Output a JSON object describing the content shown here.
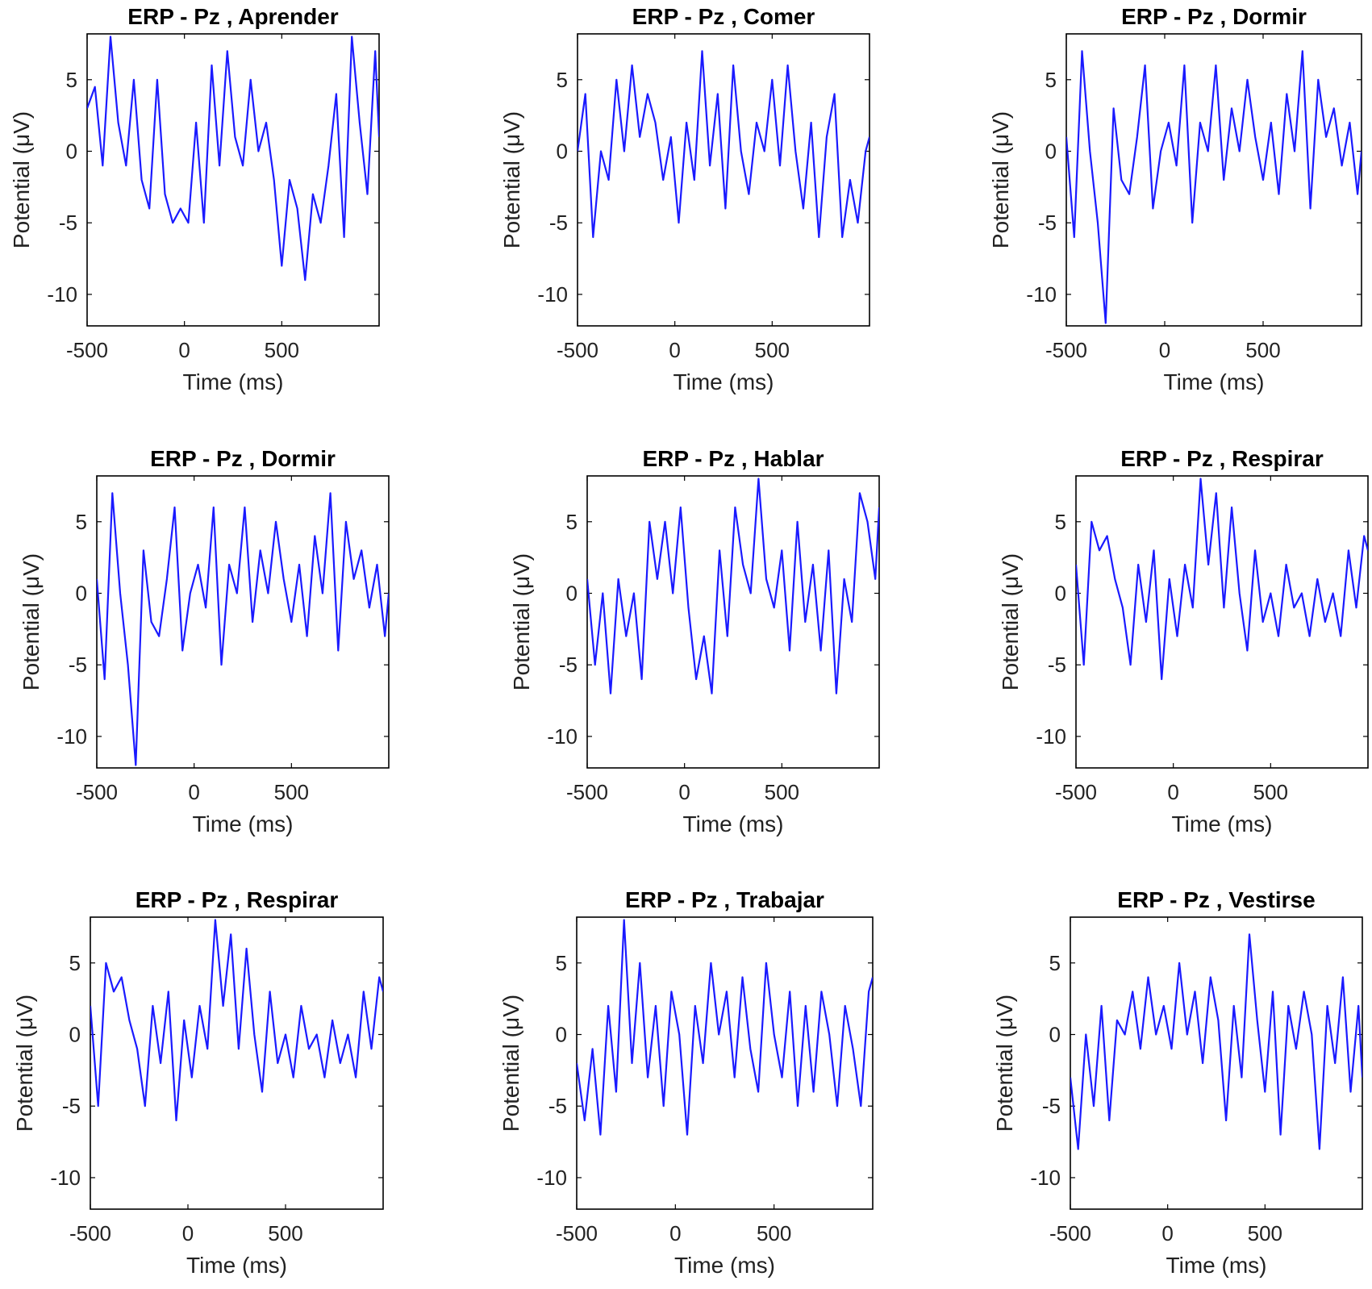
{
  "figure": {
    "line_color": "#1a1aff",
    "axis_color": "#000000",
    "background": "#ffffff"
  },
  "chart_data": [
    {
      "type": "line",
      "title": "ERP - Pz , Aprender",
      "xlabel": "Time (ms)",
      "ylabel": "Potential (μV)",
      "xlim": [
        -500,
        1000
      ],
      "ylim": [
        -12.2,
        8.2
      ],
      "xticks": [
        "-500",
        "0",
        "500"
      ],
      "yticks": [
        "5",
        "0",
        "-5",
        "-10"
      ],
      "series": [
        {
          "name": "Pz",
          "x": [
            -500,
            -460,
            -420,
            -380,
            -340,
            -300,
            -260,
            -220,
            -180,
            -140,
            -100,
            -60,
            -20,
            20,
            60,
            100,
            140,
            180,
            220,
            260,
            300,
            340,
            380,
            420,
            460,
            500,
            540,
            580,
            620,
            660,
            700,
            740,
            780,
            820,
            860,
            900,
            940,
            980,
            1000
          ],
          "y": [
            3,
            4.5,
            -1,
            8,
            2,
            -1,
            5,
            -2,
            -4,
            5,
            -3,
            -5,
            -4,
            -5,
            2,
            -5,
            6,
            -1,
            7,
            1,
            -1,
            5,
            0,
            2,
            -2,
            -8,
            -2,
            -4,
            -9,
            -3,
            -5,
            -1,
            4,
            -6,
            8,
            2,
            -3,
            7,
            1
          ]
        }
      ]
    },
    {
      "type": "line",
      "title": "ERP - Pz , Comer",
      "xlabel": "Time (ms)",
      "ylabel": "Potential (μV)",
      "xlim": [
        -500,
        1000
      ],
      "ylim": [
        -12.2,
        8.2
      ],
      "xticks": [
        "-500",
        "0",
        "500"
      ],
      "yticks": [
        "5",
        "0",
        "-5",
        "-10"
      ],
      "series": [
        {
          "name": "Pz",
          "x": [
            -500,
            -460,
            -420,
            -380,
            -340,
            -300,
            -260,
            -220,
            -180,
            -140,
            -100,
            -60,
            -20,
            20,
            60,
            100,
            140,
            180,
            220,
            260,
            300,
            340,
            380,
            420,
            460,
            500,
            540,
            580,
            620,
            660,
            700,
            740,
            780,
            820,
            860,
            900,
            940,
            980,
            1000
          ],
          "y": [
            0,
            4,
            -6,
            0,
            -2,
            5,
            0,
            6,
            1,
            4,
            2,
            -2,
            1,
            -5,
            2,
            -2,
            7,
            -1,
            4,
            -4,
            6,
            0,
            -3,
            2,
            0,
            5,
            -1,
            6,
            0,
            -4,
            2,
            -6,
            1,
            4,
            -6,
            -2,
            -5,
            0,
            1
          ]
        }
      ]
    },
    {
      "type": "line",
      "title": "ERP - Pz , Dormir",
      "xlabel": "Time (ms)",
      "ylabel": "Potential (μV)",
      "xlim": [
        -500,
        1000
      ],
      "ylim": [
        -12.2,
        8.2
      ],
      "xticks": [
        "-500",
        "0",
        "500"
      ],
      "yticks": [
        "5",
        "0",
        "-5",
        "-10"
      ],
      "series": [
        {
          "name": "Pz",
          "x": [
            -500,
            -460,
            -420,
            -380,
            -340,
            -300,
            -260,
            -220,
            -180,
            -140,
            -100,
            -60,
            -20,
            20,
            60,
            100,
            140,
            180,
            220,
            260,
            300,
            340,
            380,
            420,
            460,
            500,
            540,
            580,
            620,
            660,
            700,
            740,
            780,
            820,
            860,
            900,
            940,
            980,
            1000
          ],
          "y": [
            1,
            -6,
            7,
            0,
            -5,
            -12,
            3,
            -2,
            -3,
            1,
            6,
            -4,
            0,
            2,
            -1,
            6,
            -5,
            2,
            0,
            6,
            -2,
            3,
            0,
            5,
            1,
            -2,
            2,
            -3,
            4,
            0,
            7,
            -4,
            5,
            1,
            3,
            -1,
            2,
            -3,
            0
          ]
        }
      ]
    },
    {
      "type": "line",
      "title": "ERP - Pz , Dormir",
      "xlabel": "Time (ms)",
      "ylabel": "Potential (μV)",
      "xlim": [
        -500,
        1000
      ],
      "ylim": [
        -12.2,
        8.2
      ],
      "xticks": [
        "-500",
        "0",
        "500"
      ],
      "yticks": [
        "5",
        "0",
        "-5",
        "-10"
      ],
      "series": [
        {
          "name": "Pz",
          "x": [
            -500,
            -460,
            -420,
            -380,
            -340,
            -300,
            -260,
            -220,
            -180,
            -140,
            -100,
            -60,
            -20,
            20,
            60,
            100,
            140,
            180,
            220,
            260,
            300,
            340,
            380,
            420,
            460,
            500,
            540,
            580,
            620,
            660,
            700,
            740,
            780,
            820,
            860,
            900,
            940,
            980,
            1000
          ],
          "y": [
            1,
            -6,
            7,
            0,
            -5,
            -12,
            3,
            -2,
            -3,
            1,
            6,
            -4,
            0,
            2,
            -1,
            6,
            -5,
            2,
            0,
            6,
            -2,
            3,
            0,
            5,
            1,
            -2,
            2,
            -3,
            4,
            0,
            7,
            -4,
            5,
            1,
            3,
            -1,
            2,
            -3,
            0
          ]
        }
      ]
    },
    {
      "type": "line",
      "title": "ERP - Pz , Hablar",
      "xlabel": "Time (ms)",
      "ylabel": "Potential (μV)",
      "xlim": [
        -500,
        1000
      ],
      "ylim": [
        -12.2,
        8.2
      ],
      "xticks": [
        "-500",
        "0",
        "500"
      ],
      "yticks": [
        "5",
        "0",
        "-5",
        "-10"
      ],
      "series": [
        {
          "name": "Pz",
          "x": [
            -500,
            -460,
            -420,
            -380,
            -340,
            -300,
            -260,
            -220,
            -180,
            -140,
            -100,
            -60,
            -20,
            20,
            60,
            100,
            140,
            180,
            220,
            260,
            300,
            340,
            380,
            420,
            460,
            500,
            540,
            580,
            620,
            660,
            700,
            740,
            780,
            820,
            860,
            900,
            940,
            980,
            1000
          ],
          "y": [
            1,
            -5,
            0,
            -7,
            1,
            -3,
            0,
            -6,
            5,
            1,
            5,
            0,
            6,
            -1,
            -6,
            -3,
            -7,
            3,
            -3,
            6,
            2,
            0,
            8,
            1,
            -1,
            3,
            -4,
            5,
            -2,
            2,
            -4,
            3,
            -7,
            1,
            -2,
            7,
            5,
            1,
            6
          ]
        }
      ]
    },
    {
      "type": "line",
      "title": "ERP - Pz , Respirar",
      "xlabel": "Time (ms)",
      "ylabel": "Potential (μV)",
      "xlim": [
        -500,
        1000
      ],
      "ylim": [
        -12.2,
        8.2
      ],
      "xticks": [
        "-500",
        "0",
        "500"
      ],
      "yticks": [
        "5",
        "0",
        "-5",
        "-10"
      ],
      "series": [
        {
          "name": "Pz",
          "x": [
            -500,
            -460,
            -420,
            -380,
            -340,
            -300,
            -260,
            -220,
            -180,
            -140,
            -100,
            -60,
            -20,
            20,
            60,
            100,
            140,
            180,
            220,
            260,
            300,
            340,
            380,
            420,
            460,
            500,
            540,
            580,
            620,
            660,
            700,
            740,
            780,
            820,
            860,
            900,
            940,
            980,
            1000
          ],
          "y": [
            2,
            -5,
            5,
            3,
            4,
            1,
            -1,
            -5,
            2,
            -2,
            3,
            -6,
            1,
            -3,
            2,
            -1,
            8,
            2,
            7,
            -1,
            6,
            0,
            -4,
            3,
            -2,
            0,
            -3,
            2,
            -1,
            0,
            -3,
            1,
            -2,
            0,
            -3,
            3,
            -1,
            4,
            3
          ]
        }
      ]
    },
    {
      "type": "line",
      "title": "ERP - Pz , Respirar",
      "xlabel": "Time (ms)",
      "ylabel": "Potential (μV)",
      "xlim": [
        -500,
        1000
      ],
      "ylim": [
        -12.2,
        8.2
      ],
      "xticks": [
        "-500",
        "0",
        "500"
      ],
      "yticks": [
        "5",
        "0",
        "-5",
        "-10"
      ],
      "series": [
        {
          "name": "Pz",
          "x": [
            -500,
            -460,
            -420,
            -380,
            -340,
            -300,
            -260,
            -220,
            -180,
            -140,
            -100,
            -60,
            -20,
            20,
            60,
            100,
            140,
            180,
            220,
            260,
            300,
            340,
            380,
            420,
            460,
            500,
            540,
            580,
            620,
            660,
            700,
            740,
            780,
            820,
            860,
            900,
            940,
            980,
            1000
          ],
          "y": [
            2,
            -5,
            5,
            3,
            4,
            1,
            -1,
            -5,
            2,
            -2,
            3,
            -6,
            1,
            -3,
            2,
            -1,
            8,
            2,
            7,
            -1,
            6,
            0,
            -4,
            3,
            -2,
            0,
            -3,
            2,
            -1,
            0,
            -3,
            1,
            -2,
            0,
            -3,
            3,
            -1,
            4,
            3
          ]
        }
      ]
    },
    {
      "type": "line",
      "title": "ERP - Pz , Trabajar",
      "xlabel": "Time (ms)",
      "ylabel": "Potential (μV)",
      "xlim": [
        -500,
        1000
      ],
      "ylim": [
        -12.2,
        8.2
      ],
      "xticks": [
        "-500",
        "0",
        "500"
      ],
      "yticks": [
        "5",
        "0",
        "-5",
        "-10"
      ],
      "series": [
        {
          "name": "Pz",
          "x": [
            -500,
            -460,
            -420,
            -380,
            -340,
            -300,
            -260,
            -220,
            -180,
            -140,
            -100,
            -60,
            -20,
            20,
            60,
            100,
            140,
            180,
            220,
            260,
            300,
            340,
            380,
            420,
            460,
            500,
            540,
            580,
            620,
            660,
            700,
            740,
            780,
            820,
            860,
            900,
            940,
            980,
            1000
          ],
          "y": [
            -2,
            -6,
            -1,
            -7,
            2,
            -4,
            8,
            -2,
            5,
            -3,
            2,
            -5,
            3,
            0,
            -7,
            2,
            -2,
            5,
            0,
            3,
            -3,
            4,
            -1,
            -4,
            5,
            0,
            -3,
            3,
            -5,
            2,
            -4,
            3,
            0,
            -5,
            2,
            -1,
            -5,
            3,
            4
          ]
        }
      ]
    },
    {
      "type": "line",
      "title": "ERP - Pz , Vestirse",
      "xlabel": "Time (ms)",
      "ylabel": "Potential (μV)",
      "xlim": [
        -500,
        1000
      ],
      "ylim": [
        -12.2,
        8.2
      ],
      "xticks": [
        "-500",
        "0",
        "500"
      ],
      "yticks": [
        "5",
        "0",
        "-5",
        "-10"
      ],
      "series": [
        {
          "name": "Pz",
          "x": [
            -500,
            -460,
            -420,
            -380,
            -340,
            -300,
            -260,
            -220,
            -180,
            -140,
            -100,
            -60,
            -20,
            20,
            60,
            100,
            140,
            180,
            220,
            260,
            300,
            340,
            380,
            420,
            460,
            500,
            540,
            580,
            620,
            660,
            700,
            740,
            780,
            820,
            860,
            900,
            940,
            980,
            1000
          ],
          "y": [
            -3,
            -8,
            0,
            -5,
            2,
            -6,
            1,
            0,
            3,
            -1,
            4,
            0,
            2,
            -1,
            5,
            0,
            3,
            -2,
            4,
            1,
            -6,
            2,
            -3,
            7,
            1,
            -4,
            3,
            -7,
            2,
            -1,
            3,
            0,
            -8,
            2,
            -2,
            4,
            -4,
            2,
            -3
          ]
        }
      ]
    }
  ]
}
